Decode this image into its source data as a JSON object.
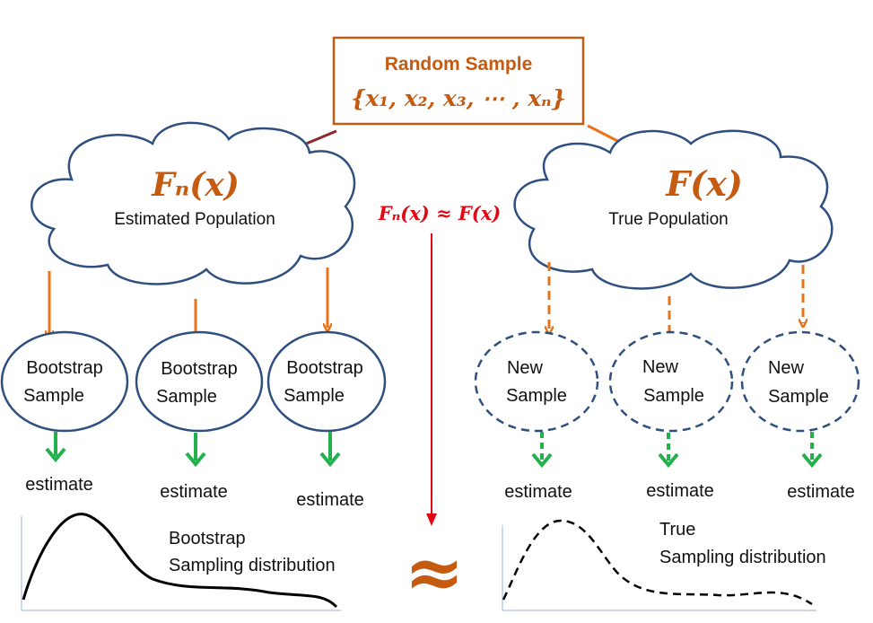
{
  "random_sample": {
    "title": "Random Sample",
    "set_notation": "{x₁, x₂, x₃, ⋯ , xₙ}"
  },
  "estimated_population": {
    "symbol": "Fₙ(x)",
    "label": "Estimated Population"
  },
  "true_population": {
    "symbol": "F(x)",
    "label": "True Population"
  },
  "approximation_text": "Fₙ(x) ≈ F(x)",
  "approx_symbol": "≈",
  "bootstrap_samples": [
    {
      "line1": "Bootstrap",
      "line2": "Sample",
      "estimate": "estimate"
    },
    {
      "line1": "Bootstrap",
      "line2": "Sample",
      "estimate": "estimate"
    },
    {
      "line1": "Bootstrap",
      "line2": "Sample",
      "estimate": "estimate"
    }
  ],
  "new_samples": [
    {
      "line1": "New",
      "line2": "Sample",
      "estimate": "estimate"
    },
    {
      "line1": "New",
      "line2": "Sample",
      "estimate": "estimate"
    },
    {
      "line1": "New",
      "line2": "Sample",
      "estimate": "estimate"
    }
  ],
  "bootstrap_distribution": {
    "line1": "Bootstrap",
    "line2": "Sampling distribution"
  },
  "true_distribution": {
    "line1": "True",
    "line2": "Sampling distribution"
  },
  "colors": {
    "orange": "#c55a11",
    "arrow_orange": "#e8731a",
    "navy": "#2f4f7f",
    "green": "#22b14c",
    "red": "#e30613",
    "dark_red": "#8b2a2a"
  }
}
